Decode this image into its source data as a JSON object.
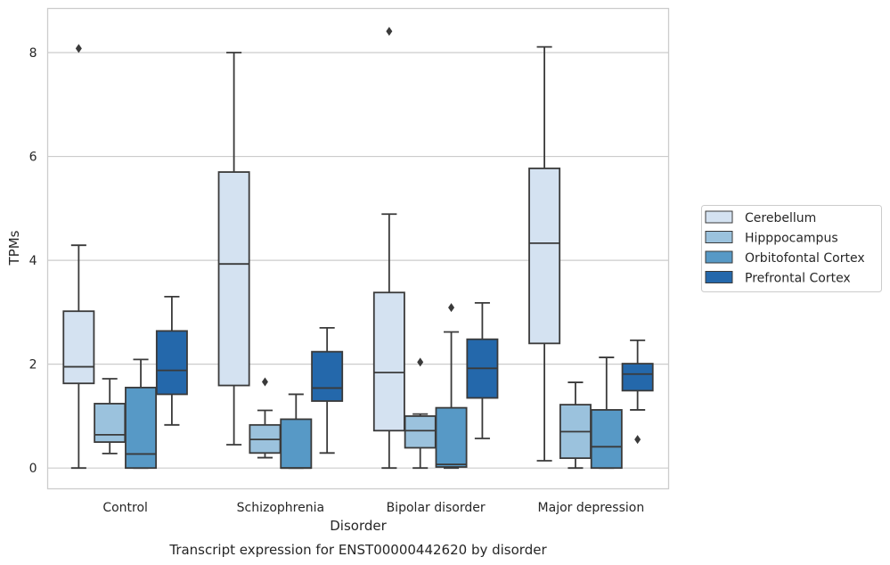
{
  "caption": "Transcript expression for ENST00000442620 by disorder",
  "chart_data": {
    "type": "box",
    "xlabel": "Disorder",
    "ylabel": "TPMs",
    "ylim": [
      -0.4,
      8.85
    ],
    "yticks": [
      0,
      2,
      4,
      6,
      8
    ],
    "grid": true,
    "legend_position": "right",
    "categories": [
      "Control",
      "Schizophrenia",
      "Bipolar disorder",
      "Major depression"
    ],
    "series": [
      {
        "name": "Cerebellum",
        "color": "#d4e2f1",
        "boxes": [
          {
            "whisker_low": 0.0,
            "q1": 1.63,
            "median": 1.95,
            "q3": 3.02,
            "whisker_high": 4.29,
            "outliers": [
              8.08
            ]
          },
          {
            "whisker_low": 0.45,
            "q1": 1.59,
            "median": 3.93,
            "q3": 5.7,
            "whisker_high": 8.0,
            "outliers": []
          },
          {
            "whisker_low": 0.0,
            "q1": 0.72,
            "median": 1.84,
            "q3": 3.38,
            "whisker_high": 4.89,
            "outliers": [
              8.41
            ]
          },
          {
            "whisker_low": 0.14,
            "q1": 2.4,
            "median": 4.33,
            "q3": 5.77,
            "whisker_high": 8.11,
            "outliers": []
          }
        ]
      },
      {
        "name": "Hipppocampus",
        "color": "#9bc2dd",
        "boxes": [
          {
            "whisker_low": 0.28,
            "q1": 0.5,
            "median": 0.64,
            "q3": 1.24,
            "whisker_high": 1.72,
            "outliers": []
          },
          {
            "whisker_low": 0.2,
            "q1": 0.29,
            "median": 0.55,
            "q3": 0.83,
            "whisker_high": 1.11,
            "outliers": [
              1.66
            ]
          },
          {
            "whisker_low": 0.0,
            "q1": 0.39,
            "median": 0.72,
            "q3": 1.0,
            "whisker_high": 1.04,
            "outliers": [
              2.04
            ]
          },
          {
            "whisker_low": 0.0,
            "q1": 0.19,
            "median": 0.7,
            "q3": 1.22,
            "whisker_high": 1.65,
            "outliers": []
          }
        ]
      },
      {
        "name": "Orbitofontal Cortex",
        "color": "#5799c6",
        "boxes": [
          {
            "whisker_low": 0.0,
            "q1": 0.0,
            "median": 0.27,
            "q3": 1.55,
            "whisker_high": 2.09,
            "outliers": []
          },
          {
            "whisker_low": 0.0,
            "q1": 0.0,
            "median": 0.0,
            "q3": 0.94,
            "whisker_high": 1.42,
            "outliers": []
          },
          {
            "whisker_low": 0.0,
            "q1": 0.02,
            "median": 0.07,
            "q3": 1.16,
            "whisker_high": 2.62,
            "outliers": [
              3.09
            ]
          },
          {
            "whisker_low": 0.0,
            "q1": 0.0,
            "median": 0.41,
            "q3": 1.12,
            "whisker_high": 2.13,
            "outliers": []
          }
        ]
      },
      {
        "name": "Prefrontal Cortex",
        "color": "#2468ab",
        "boxes": [
          {
            "whisker_low": 0.83,
            "q1": 1.42,
            "median": 1.88,
            "q3": 2.64,
            "whisker_high": 3.3,
            "outliers": []
          },
          {
            "whisker_low": 0.29,
            "q1": 1.29,
            "median": 1.54,
            "q3": 2.24,
            "whisker_high": 2.7,
            "outliers": []
          },
          {
            "whisker_low": 0.57,
            "q1": 1.35,
            "median": 1.92,
            "q3": 2.48,
            "whisker_high": 3.18,
            "outliers": []
          },
          {
            "whisker_low": 1.12,
            "q1": 1.49,
            "median": 1.81,
            "q3": 2.01,
            "whisker_high": 2.46,
            "outliers": [
              0.55
            ]
          }
        ]
      }
    ]
  }
}
